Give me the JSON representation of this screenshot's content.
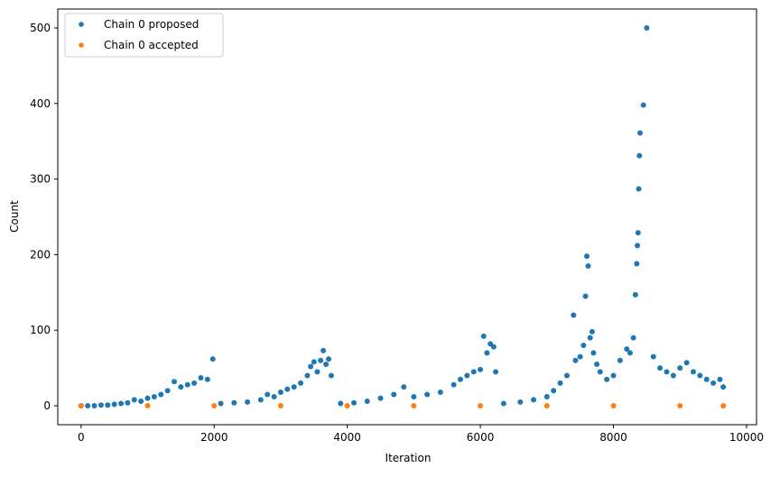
{
  "chart_data": {
    "type": "scatter",
    "title": "",
    "xlabel": "Iteration",
    "ylabel": "Count",
    "xlim": [
      -350,
      10150
    ],
    "ylim": [
      -25,
      525
    ],
    "xticks": [
      0,
      2000,
      4000,
      6000,
      8000,
      10000
    ],
    "xtick_labels": [
      "0",
      "2000",
      "4000",
      "6000",
      "8000",
      "10000"
    ],
    "yticks": [
      0,
      100,
      200,
      300,
      400,
      500
    ],
    "ytick_labels": [
      "0",
      "100",
      "200",
      "300",
      "400",
      "500"
    ],
    "grid": false,
    "legend_position": "upper-left",
    "series": [
      {
        "name": "Chain 0 proposed",
        "color": "#1f77b4",
        "x": [
          0,
          100,
          200,
          300,
          400,
          500,
          600,
          700,
          800,
          900,
          1000,
          1100,
          1200,
          1300,
          1400,
          1500,
          1600,
          1700,
          1800,
          1900,
          1980,
          2100,
          2300,
          2500,
          2700,
          2800,
          2900,
          3000,
          3100,
          3200,
          3300,
          3400,
          3450,
          3500,
          3550,
          3600,
          3640,
          3680,
          3720,
          3760,
          3900,
          4100,
          4300,
          4500,
          4700,
          4850,
          5000,
          5200,
          5400,
          5600,
          5700,
          5800,
          5900,
          6000,
          6050,
          6100,
          6150,
          6200,
          6230,
          6350,
          6600,
          6800,
          7000,
          7100,
          7200,
          7300,
          7400,
          7430,
          7500,
          7550,
          7580,
          7600,
          7620,
          7650,
          7680,
          7700,
          7750,
          7800,
          7900,
          8000,
          8100,
          8200,
          8250,
          8300,
          8330,
          8350,
          8360,
          8370,
          8380,
          8390,
          8400,
          8450,
          8500,
          8600,
          8700,
          8800,
          8900,
          9000,
          9100,
          9200,
          9300,
          9400,
          9500,
          9600,
          9650
        ],
        "y": [
          0,
          0,
          0,
          1,
          1,
          2,
          3,
          4,
          8,
          6,
          10,
          12,
          15,
          20,
          32,
          25,
          28,
          30,
          37,
          35,
          62,
          3,
          4,
          5,
          8,
          15,
          12,
          18,
          22,
          25,
          30,
          40,
          52,
          58,
          45,
          60,
          73,
          55,
          62,
          40,
          3,
          4,
          6,
          10,
          15,
          25,
          12,
          15,
          18,
          28,
          35,
          40,
          45,
          48,
          92,
          70,
          82,
          78,
          45,
          3,
          5,
          8,
          12,
          20,
          30,
          40,
          120,
          60,
          65,
          80,
          145,
          198,
          185,
          90,
          98,
          70,
          55,
          45,
          35,
          40,
          60,
          75,
          70,
          90,
          147,
          188,
          212,
          229,
          287,
          331,
          361,
          398,
          500,
          65,
          50,
          45,
          40,
          50,
          57,
          45,
          40,
          35,
          30,
          35,
          25
        ]
      },
      {
        "name": "Chain 0 accepted",
        "color": "#ff7f0e",
        "x": [
          0,
          1000,
          2000,
          3000,
          4000,
          5000,
          6000,
          7000,
          8000,
          9000,
          9650
        ],
        "y": [
          0,
          0,
          0,
          0,
          0,
          0,
          0,
          0,
          0,
          0,
          0
        ]
      }
    ]
  }
}
